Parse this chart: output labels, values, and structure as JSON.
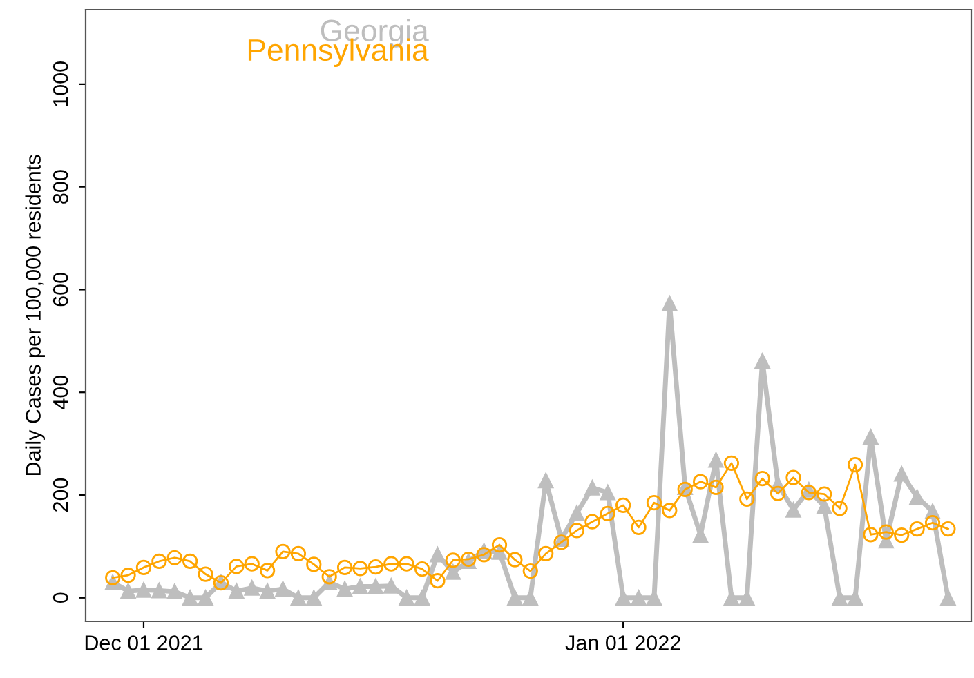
{
  "chart_data": {
    "type": "line",
    "ylabel": "Daily Cases per 100,000 residents",
    "x": [
      "2021-11-29",
      "2021-11-30",
      "2021-12-01",
      "2021-12-02",
      "2021-12-03",
      "2021-12-04",
      "2021-12-05",
      "2021-12-06",
      "2021-12-07",
      "2021-12-08",
      "2021-12-09",
      "2021-12-10",
      "2021-12-11",
      "2021-12-12",
      "2021-12-13",
      "2021-12-14",
      "2021-12-15",
      "2021-12-16",
      "2021-12-17",
      "2021-12-18",
      "2021-12-19",
      "2021-12-20",
      "2021-12-21",
      "2021-12-22",
      "2021-12-23",
      "2021-12-24",
      "2021-12-25",
      "2021-12-26",
      "2021-12-27",
      "2021-12-28",
      "2021-12-29",
      "2021-12-30",
      "2021-12-31",
      "2022-01-01",
      "2022-01-02",
      "2022-01-03",
      "2022-01-04",
      "2022-01-05",
      "2022-01-06",
      "2022-01-07",
      "2022-01-08",
      "2022-01-09",
      "2022-01-10",
      "2022-01-11",
      "2022-01-12",
      "2022-01-13",
      "2022-01-14",
      "2022-01-15",
      "2022-01-16",
      "2022-01-17",
      "2022-01-18",
      "2022-01-19",
      "2022-01-20",
      "2022-01-21",
      "2022-01-22"
    ],
    "series": [
      {
        "name": "Georgia",
        "color": "#bebebe",
        "marker": "triangle",
        "values": [
          30,
          13,
          15,
          14,
          12,
          0,
          0,
          30,
          13,
          19,
          13,
          17,
          0,
          0,
          30,
          17,
          22,
          22,
          23,
          0,
          0,
          84,
          50,
          71,
          91,
          89,
          0,
          0,
          228,
          114,
          165,
          214,
          205,
          0,
          0,
          0,
          573,
          215,
          122,
          268,
          0,
          0,
          461,
          221,
          171,
          210,
          178,
          0,
          0,
          313,
          111,
          241,
          196,
          168,
          0
        ]
      },
      {
        "name": "Pennsylvania",
        "color": "#ffa500",
        "marker": "circle",
        "values": [
          39,
          44,
          59,
          71,
          78,
          71,
          46,
          29,
          61,
          66,
          53,
          90,
          86,
          65,
          41,
          59,
          57,
          60,
          66,
          66,
          56,
          33,
          73,
          75,
          84,
          103,
          74,
          52,
          86,
          108,
          131,
          148,
          164,
          180,
          137,
          185,
          170,
          211,
          226,
          215,
          262,
          192,
          232,
          203,
          234,
          205,
          202,
          174,
          259,
          123,
          128,
          122,
          134,
          146,
          134
        ]
      }
    ],
    "xlim": [
      "2021-11-27T06:00",
      "2022-01-23T12:00"
    ],
    "xticks": [
      {
        "value": "2021-12-01",
        "label": "Dec 01 2021"
      },
      {
        "value": "2022-01-01",
        "label": "Jan 01 2022"
      }
    ],
    "ylim": [
      -46,
      1145
    ],
    "yticks": [
      0,
      200,
      400,
      600,
      800,
      1000
    ],
    "grid": false,
    "legend": "top left",
    "line_style": "solid"
  }
}
